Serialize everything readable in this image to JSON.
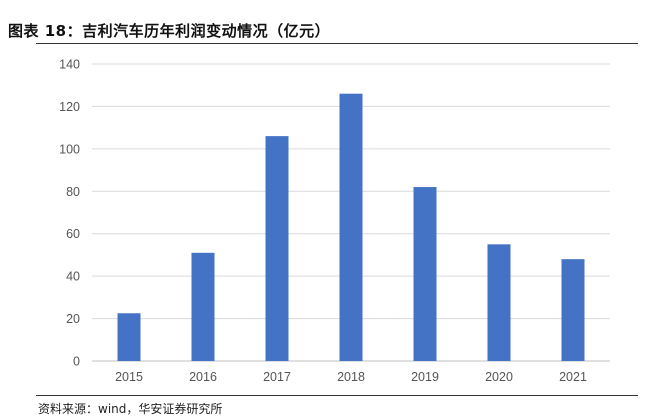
{
  "header": {
    "title": "图表 18：吉利汽车历年利润变动情况（亿元）"
  },
  "footer": {
    "source": "资料来源：wind，华安证券研究所"
  },
  "chart_data": {
    "type": "bar",
    "categories": [
      "2015",
      "2016",
      "2017",
      "2018",
      "2019",
      "2020",
      "2021"
    ],
    "values": [
      22.5,
      51,
      106,
      126,
      82,
      55,
      48
    ],
    "ylim": [
      0,
      140
    ],
    "yticks": [
      "0",
      "20",
      "40",
      "60",
      "80",
      "100",
      "120",
      "140"
    ],
    "grid": true,
    "bar_color": "#4472C4",
    "grid_color": "#d9d9d9"
  }
}
